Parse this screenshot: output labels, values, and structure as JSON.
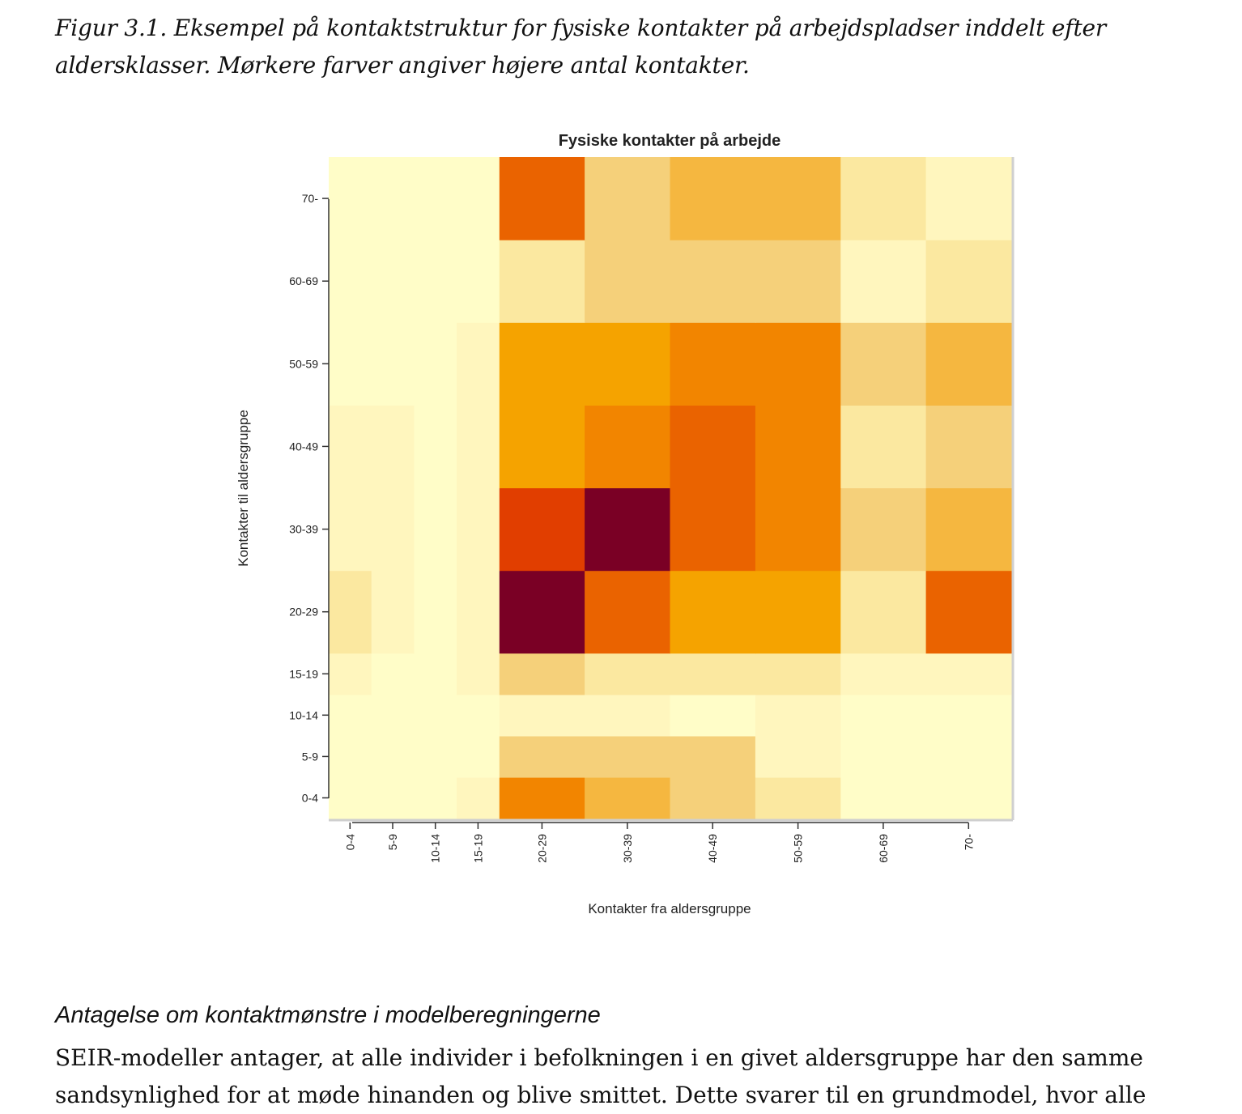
{
  "caption": "Figur 3.1. Eksempel på kontaktstruktur for fysiske kontakter på arbejdspladser inddelt efter aldersklasser. Mørkere farver angiver højere antal kontakter.",
  "chart_data": {
    "type": "heatmap",
    "title": "Fysiske kontakter på arbejde",
    "xlabel": "Kontakter fra aldersgruppe",
    "ylabel": "Kontakter til aldersgruppe",
    "x_categories": [
      "0-4",
      "5-9",
      "10-14",
      "15-19",
      "20-29",
      "30-39",
      "40-49",
      "50-59",
      "60-69",
      "70-"
    ],
    "y_categories": [
      "0-4",
      "5-9",
      "10-14",
      "15-19",
      "20-29",
      "30-39",
      "40-49",
      "50-59",
      "60-69",
      "70-"
    ],
    "x_bin_edges": [
      0,
      5,
      10,
      15,
      20,
      30,
      40,
      50,
      60,
      70,
      80
    ],
    "y_bin_edges": [
      0,
      5,
      10,
      15,
      20,
      30,
      40,
      50,
      60,
      70,
      80
    ],
    "color_scale": {
      "low": "#FFFDC8",
      "stops": [
        "#FFFDC8",
        "#FFF6BE",
        "#FBE8A0",
        "#F5D07A",
        "#F5B740",
        "#F5A300",
        "#F28500",
        "#EA6300",
        "#E13E00",
        "#7A0025"
      ]
    },
    "values": [
      [
        0,
        0,
        0,
        1,
        6,
        4,
        3,
        2,
        0,
        0
      ],
      [
        0,
        0,
        0,
        0,
        3,
        3,
        3,
        1,
        0,
        0
      ],
      [
        0,
        0,
        0,
        0,
        1,
        1,
        0,
        1,
        0,
        0
      ],
      [
        1,
        0,
        0,
        1,
        3,
        2,
        2,
        2,
        1,
        1
      ],
      [
        2,
        1,
        0,
        1,
        9,
        7,
        5,
        5,
        2,
        7
      ],
      [
        1,
        1,
        0,
        1,
        8,
        9,
        7,
        6,
        3,
        4
      ],
      [
        1,
        1,
        0,
        1,
        5,
        6,
        7,
        6,
        2,
        3
      ],
      [
        0,
        0,
        0,
        1,
        5,
        5,
        6,
        6,
        3,
        4
      ],
      [
        0,
        0,
        0,
        0,
        2,
        3,
        3,
        3,
        1,
        2
      ],
      [
        0,
        0,
        0,
        0,
        7,
        3,
        4,
        4,
        2,
        1
      ]
    ]
  },
  "section": {
    "title": "Antagelse om kontaktmønstre i modelberegningerne",
    "body_line1": "SEIR-modeller antager, at alle individer i befolkningen i en givet aldersgruppe har den samme",
    "body_line2": "sandsynlighed for at møde hinanden og blive smittet. Dette svarer til en grundmodel, hvor alle"
  }
}
